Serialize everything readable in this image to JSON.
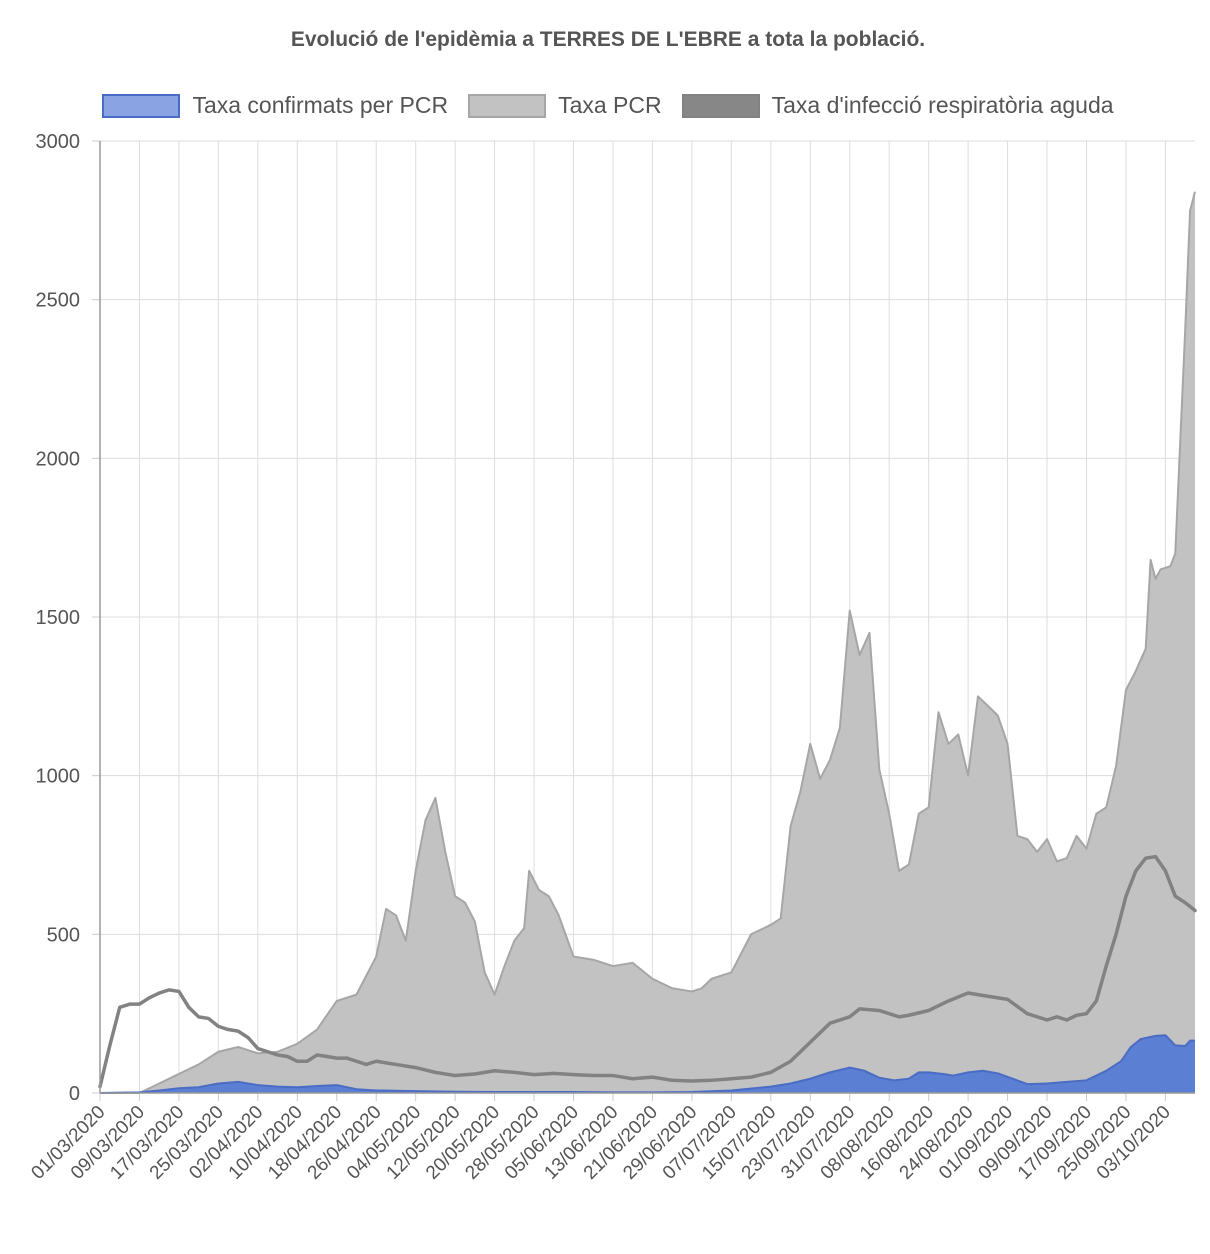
{
  "chart_data": {
    "type": "area",
    "title": "Evolució de l'epidèmia a TERRES DE L'EBRE a tota la població.",
    "xlabel": "",
    "ylabel": "",
    "ylim": [
      0,
      3000
    ],
    "yticks": [
      "0",
      "500",
      "1000",
      "1500",
      "2000",
      "2500",
      "3000"
    ],
    "legend_position": "top",
    "grid": true,
    "x_start": "01/03/2020",
    "x_end": "09/10/2020",
    "x_tick_labels": [
      "01/03/2020",
      "09/03/2020",
      "17/03/2020",
      "25/03/2020",
      "02/04/2020",
      "10/04/2020",
      "18/04/2020",
      "26/04/2020",
      "04/05/2020",
      "12/05/2020",
      "20/05/2020",
      "28/05/2020",
      "05/06/2020",
      "13/06/2020",
      "21/06/2020",
      "29/06/2020",
      "07/07/2020",
      "15/07/2020",
      "23/07/2020",
      "31/07/2020",
      "08/08/2020",
      "16/08/2020",
      "24/08/2020",
      "01/09/2020",
      "09/09/2020",
      "17/09/2020",
      "25/09/2020",
      "03/10/2020"
    ],
    "series": [
      {
        "name": "Taxa confirmats per PCR",
        "fill": "#5b7fd3",
        "legend_fill": "#8aa4e3",
        "stroke": "#4a6cc4",
        "style": "filled-area",
        "points": [
          [
            "01/03/2020",
            0
          ],
          [
            "09/03/2020",
            2
          ],
          [
            "13/03/2020",
            8
          ],
          [
            "17/03/2020",
            15
          ],
          [
            "21/03/2020",
            18
          ],
          [
            "25/03/2020",
            30
          ],
          [
            "29/03/2020",
            35
          ],
          [
            "02/04/2020",
            25
          ],
          [
            "06/04/2020",
            20
          ],
          [
            "10/04/2020",
            18
          ],
          [
            "14/04/2020",
            22
          ],
          [
            "18/04/2020",
            25
          ],
          [
            "22/04/2020",
            12
          ],
          [
            "26/04/2020",
            8
          ],
          [
            "04/05/2020",
            6
          ],
          [
            "12/05/2020",
            4
          ],
          [
            "20/05/2020",
            3
          ],
          [
            "28/05/2020",
            3
          ],
          [
            "05/06/2020",
            3
          ],
          [
            "13/06/2020",
            2
          ],
          [
            "21/06/2020",
            2
          ],
          [
            "29/06/2020",
            3
          ],
          [
            "07/07/2020",
            8
          ],
          [
            "15/07/2020",
            20
          ],
          [
            "19/07/2020",
            30
          ],
          [
            "23/07/2020",
            45
          ],
          [
            "27/07/2020",
            65
          ],
          [
            "31/07/2020",
            80
          ],
          [
            "03/08/2020",
            70
          ],
          [
            "06/08/2020",
            48
          ],
          [
            "09/08/2020",
            40
          ],
          [
            "12/08/2020",
            45
          ],
          [
            "14/08/2020",
            65
          ],
          [
            "16/08/2020",
            65
          ],
          [
            "19/08/2020",
            60
          ],
          [
            "21/08/2020",
            55
          ],
          [
            "24/08/2020",
            65
          ],
          [
            "27/08/2020",
            70
          ],
          [
            "30/08/2020",
            62
          ],
          [
            "02/09/2020",
            45
          ],
          [
            "05/09/2020",
            28
          ],
          [
            "09/09/2020",
            30
          ],
          [
            "13/09/2020",
            35
          ],
          [
            "17/09/2020",
            40
          ],
          [
            "21/09/2020",
            70
          ],
          [
            "24/09/2020",
            100
          ],
          [
            "26/09/2020",
            145
          ],
          [
            "28/09/2020",
            170
          ],
          [
            "01/10/2020",
            180
          ],
          [
            "03/10/2020",
            182
          ],
          [
            "05/10/2020",
            150
          ],
          [
            "07/10/2020",
            148
          ],
          [
            "08/10/2020",
            165
          ],
          [
            "09/10/2020",
            165
          ]
        ]
      },
      {
        "name": "Taxa PCR",
        "fill": "#c2c2c2",
        "legend_fill": "#c2c2c2",
        "stroke": "#a6a6a6",
        "style": "filled-area",
        "points": [
          [
            "01/03/2020",
            0
          ],
          [
            "09/03/2020",
            0
          ],
          [
            "13/03/2020",
            30
          ],
          [
            "17/03/2020",
            60
          ],
          [
            "21/03/2020",
            90
          ],
          [
            "25/03/2020",
            130
          ],
          [
            "29/03/2020",
            145
          ],
          [
            "02/04/2020",
            125
          ],
          [
            "06/04/2020",
            130
          ],
          [
            "10/04/2020",
            155
          ],
          [
            "14/04/2020",
            200
          ],
          [
            "18/04/2020",
            290
          ],
          [
            "22/04/2020",
            310
          ],
          [
            "26/04/2020",
            430
          ],
          [
            "28/04/2020",
            580
          ],
          [
            "30/04/2020",
            560
          ],
          [
            "02/05/2020",
            480
          ],
          [
            "04/05/2020",
            700
          ],
          [
            "06/05/2020",
            860
          ],
          [
            "08/05/2020",
            930
          ],
          [
            "10/05/2020",
            760
          ],
          [
            "12/05/2020",
            620
          ],
          [
            "14/05/2020",
            600
          ],
          [
            "16/05/2020",
            540
          ],
          [
            "18/05/2020",
            380
          ],
          [
            "20/05/2020",
            310
          ],
          [
            "22/05/2020",
            400
          ],
          [
            "24/05/2020",
            480
          ],
          [
            "26/05/2020",
            520
          ],
          [
            "27/05/2020",
            700
          ],
          [
            "29/05/2020",
            640
          ],
          [
            "31/05/2020",
            620
          ],
          [
            "02/06/2020",
            560
          ],
          [
            "05/06/2020",
            430
          ],
          [
            "09/06/2020",
            420
          ],
          [
            "13/06/2020",
            400
          ],
          [
            "17/06/2020",
            410
          ],
          [
            "21/06/2020",
            360
          ],
          [
            "25/06/2020",
            330
          ],
          [
            "29/06/2020",
            320
          ],
          [
            "01/07/2020",
            330
          ],
          [
            "03/07/2020",
            360
          ],
          [
            "07/07/2020",
            380
          ],
          [
            "11/07/2020",
            500
          ],
          [
            "15/07/2020",
            530
          ],
          [
            "17/07/2020",
            550
          ],
          [
            "19/07/2020",
            840
          ],
          [
            "21/07/2020",
            950
          ],
          [
            "23/07/2020",
            1100
          ],
          [
            "25/07/2020",
            990
          ],
          [
            "27/07/2020",
            1050
          ],
          [
            "29/07/2020",
            1150
          ],
          [
            "31/07/2020",
            1520
          ],
          [
            "02/08/2020",
            1380
          ],
          [
            "04/08/2020",
            1450
          ],
          [
            "06/08/2020",
            1020
          ],
          [
            "08/08/2020",
            880
          ],
          [
            "10/08/2020",
            700
          ],
          [
            "12/08/2020",
            720
          ],
          [
            "14/08/2020",
            880
          ],
          [
            "16/08/2020",
            900
          ],
          [
            "18/08/2020",
            1200
          ],
          [
            "20/08/2020",
            1100
          ],
          [
            "22/08/2020",
            1130
          ],
          [
            "24/08/2020",
            1000
          ],
          [
            "26/08/2020",
            1250
          ],
          [
            "28/08/2020",
            1220
          ],
          [
            "30/08/2020",
            1190
          ],
          [
            "01/09/2020",
            1100
          ],
          [
            "03/09/2020",
            810
          ],
          [
            "05/09/2020",
            800
          ],
          [
            "07/09/2020",
            760
          ],
          [
            "09/09/2020",
            800
          ],
          [
            "11/09/2020",
            730
          ],
          [
            "13/09/2020",
            740
          ],
          [
            "15/09/2020",
            810
          ],
          [
            "17/09/2020",
            770
          ],
          [
            "19/09/2020",
            880
          ],
          [
            "21/09/2020",
            900
          ],
          [
            "23/09/2020",
            1030
          ],
          [
            "25/09/2020",
            1270
          ],
          [
            "27/09/2020",
            1330
          ],
          [
            "29/09/2020",
            1400
          ],
          [
            "30/09/2020",
            1680
          ],
          [
            "01/10/2020",
            1620
          ],
          [
            "02/10/2020",
            1650
          ],
          [
            "04/10/2020",
            1660
          ],
          [
            "05/10/2020",
            1700
          ],
          [
            "07/10/2020",
            2400
          ],
          [
            "08/10/2020",
            2780
          ],
          [
            "09/10/2020",
            2840
          ]
        ]
      },
      {
        "name": "Taxa d'infecció respiratòria aguda",
        "fill": "#878787",
        "legend_fill": "#878787",
        "stroke": "#828282",
        "style": "line",
        "points": [
          [
            "01/03/2020",
            20
          ],
          [
            "03/03/2020",
            150
          ],
          [
            "05/03/2020",
            270
          ],
          [
            "07/03/2020",
            280
          ],
          [
            "09/03/2020",
            280
          ],
          [
            "11/03/2020",
            300
          ],
          [
            "13/03/2020",
            315
          ],
          [
            "15/03/2020",
            325
          ],
          [
            "17/03/2020",
            320
          ],
          [
            "19/03/2020",
            270
          ],
          [
            "21/03/2020",
            240
          ],
          [
            "23/03/2020",
            235
          ],
          [
            "25/03/2020",
            210
          ],
          [
            "27/03/2020",
            200
          ],
          [
            "29/03/2020",
            195
          ],
          [
            "31/03/2020",
            175
          ],
          [
            "02/04/2020",
            140
          ],
          [
            "04/04/2020",
            130
          ],
          [
            "06/04/2020",
            120
          ],
          [
            "08/04/2020",
            115
          ],
          [
            "10/04/2020",
            100
          ],
          [
            "12/04/2020",
            100
          ],
          [
            "14/04/2020",
            120
          ],
          [
            "16/04/2020",
            115
          ],
          [
            "18/04/2020",
            110
          ],
          [
            "20/04/2020",
            110
          ],
          [
            "22/04/2020",
            100
          ],
          [
            "24/04/2020",
            90
          ],
          [
            "26/04/2020",
            100
          ],
          [
            "28/04/2020",
            95
          ],
          [
            "30/04/2020",
            90
          ],
          [
            "04/05/2020",
            80
          ],
          [
            "08/05/2020",
            65
          ],
          [
            "12/05/2020",
            55
          ],
          [
            "16/05/2020",
            60
          ],
          [
            "20/05/2020",
            70
          ],
          [
            "24/05/2020",
            65
          ],
          [
            "28/05/2020",
            58
          ],
          [
            "01/06/2020",
            62
          ],
          [
            "05/06/2020",
            58
          ],
          [
            "09/06/2020",
            55
          ],
          [
            "13/06/2020",
            55
          ],
          [
            "17/06/2020",
            45
          ],
          [
            "21/06/2020",
            50
          ],
          [
            "25/06/2020",
            40
          ],
          [
            "29/06/2020",
            38
          ],
          [
            "03/07/2020",
            40
          ],
          [
            "07/07/2020",
            45
          ],
          [
            "11/07/2020",
            50
          ],
          [
            "15/07/2020",
            65
          ],
          [
            "19/07/2020",
            100
          ],
          [
            "23/07/2020",
            160
          ],
          [
            "27/07/2020",
            220
          ],
          [
            "31/07/2020",
            240
          ],
          [
            "02/08/2020",
            265
          ],
          [
            "06/08/2020",
            260
          ],
          [
            "08/08/2020",
            250
          ],
          [
            "10/08/2020",
            240
          ],
          [
            "12/08/2020",
            245
          ],
          [
            "16/08/2020",
            260
          ],
          [
            "20/08/2020",
            290
          ],
          [
            "24/08/2020",
            315
          ],
          [
            "28/08/2020",
            305
          ],
          [
            "01/09/2020",
            295
          ],
          [
            "05/09/2020",
            250
          ],
          [
            "09/09/2020",
            230
          ],
          [
            "11/09/2020",
            240
          ],
          [
            "13/09/2020",
            230
          ],
          [
            "15/09/2020",
            245
          ],
          [
            "17/09/2020",
            250
          ],
          [
            "19/09/2020",
            290
          ],
          [
            "21/09/2020",
            400
          ],
          [
            "23/09/2020",
            500
          ],
          [
            "25/09/2020",
            620
          ],
          [
            "27/09/2020",
            700
          ],
          [
            "29/09/2020",
            740
          ],
          [
            "01/10/2020",
            745
          ],
          [
            "03/10/2020",
            700
          ],
          [
            "05/10/2020",
            620
          ],
          [
            "07/10/2020",
            600
          ],
          [
            "09/10/2020",
            575
          ]
        ]
      }
    ]
  }
}
